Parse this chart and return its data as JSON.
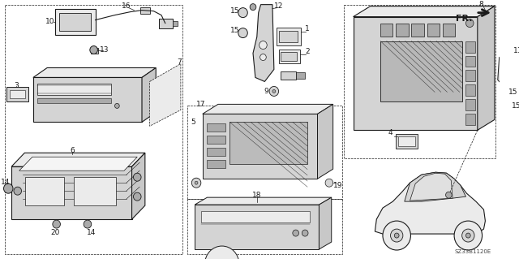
{
  "background_color": "#ffffff",
  "fig_width": 6.4,
  "fig_height": 3.19,
  "dpi": 100,
  "watermark": "SZ33B1120E",
  "direction_label": "FR.",
  "line_color": "#1a1a1a",
  "gray_fill": "#d4d4d4",
  "light_fill": "#ebebeb",
  "dark_fill": "#aaaaaa",
  "screen_fill": "#c8c8c8"
}
